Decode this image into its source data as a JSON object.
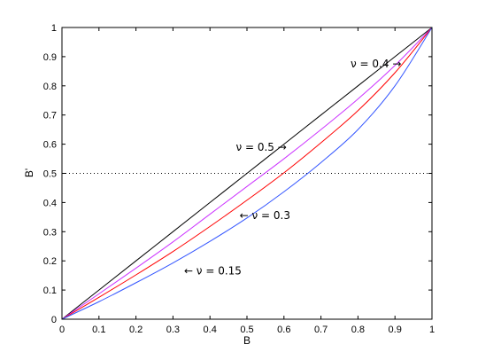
{
  "chart_data": {
    "type": "line",
    "title": "",
    "xlabel": "B",
    "ylabel": "B'",
    "xlim": [
      0,
      1
    ],
    "ylim": [
      0,
      1
    ],
    "xticks": [
      "0",
      "0.1",
      "0.2",
      "0.3",
      "0.4",
      "0.5",
      "0.6",
      "0.7",
      "0.8",
      "0.9",
      "1"
    ],
    "yticks": [
      "0",
      "0.1",
      "0.2",
      "0.3",
      "0.4",
      "0.5",
      "0.6",
      "0.7",
      "0.8",
      "0.9",
      "1"
    ],
    "grid": false,
    "reference_line": {
      "y": 0.5,
      "style": "dotted",
      "color": "#000000"
    },
    "x": [
      0,
      0.1,
      0.2,
      0.3,
      0.4,
      0.5,
      0.6,
      0.7,
      0.8,
      0.9,
      1.0
    ],
    "series": [
      {
        "label": "ν = 0.5 →",
        "color": "#000000",
        "values": [
          0,
          0.1,
          0.2,
          0.3,
          0.4,
          0.5,
          0.6,
          0.7,
          0.8,
          0.9,
          1.0
        ]
      },
      {
        "label": "ν = 0.4 →",
        "color": "#cc33ff",
        "values": [
          0,
          0.087,
          0.175,
          0.265,
          0.36,
          0.455,
          0.55,
          0.65,
          0.755,
          0.87,
          1.0
        ]
      },
      {
        "label": "← ν = 0.3",
        "color": "#ff0000",
        "values": [
          0,
          0.075,
          0.152,
          0.232,
          0.318,
          0.408,
          0.502,
          0.605,
          0.715,
          0.845,
          1.0
        ]
      },
      {
        "label": "← ν = 0.15",
        "color": "#3355ff",
        "values": [
          0,
          0.06,
          0.125,
          0.193,
          0.267,
          0.347,
          0.437,
          0.537,
          0.65,
          0.8,
          1.0
        ]
      }
    ],
    "annotations": [
      {
        "text": "ν = 0.4 →",
        "x": 0.78,
        "y": 0.875
      },
      {
        "text": "ν = 0.5 →",
        "x": 0.47,
        "y": 0.59
      },
      {
        "text": "← ν = 0.3",
        "x": 0.48,
        "y": 0.355
      },
      {
        "text": "← ν = 0.15",
        "x": 0.33,
        "y": 0.165
      }
    ]
  }
}
